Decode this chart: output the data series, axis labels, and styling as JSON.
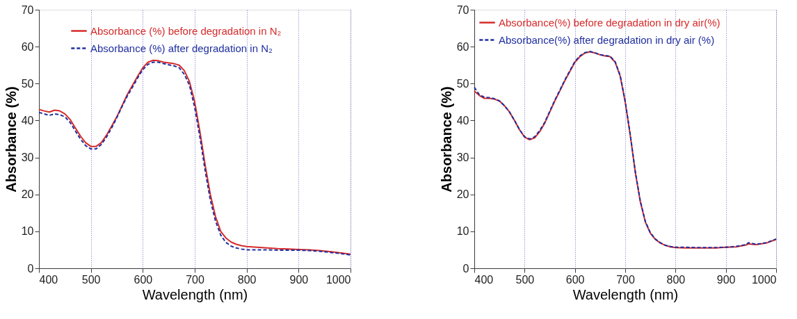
{
  "chart_data": [
    {
      "type": "line",
      "xlabel": "Wavelength (nm)",
      "ylabel": "Absorbance (%)",
      "xlim": [
        400,
        1000
      ],
      "xticks": [
        400,
        500,
        600,
        700,
        800,
        900,
        1000
      ],
      "ylim": [
        0,
        70
      ],
      "yticks": [
        0,
        10,
        20,
        30,
        40,
        50,
        60,
        70
      ],
      "grid": "x",
      "legend": "top",
      "marker": "none",
      "x": [
        400,
        410,
        420,
        430,
        440,
        450,
        460,
        470,
        480,
        490,
        500,
        510,
        520,
        530,
        540,
        550,
        560,
        570,
        580,
        590,
        600,
        610,
        620,
        630,
        640,
        650,
        660,
        670,
        680,
        690,
        700,
        710,
        720,
        730,
        740,
        750,
        760,
        770,
        780,
        790,
        800,
        820,
        840,
        860,
        880,
        900,
        920,
        940,
        960,
        980,
        1000
      ],
      "series": [
        {
          "name": "Absorbance (%) before degradation in N₂",
          "color": "#d62a2a",
          "line_style": "solid",
          "values": [
            43,
            42.6,
            42.3,
            42.8,
            42.6,
            41.8,
            40.3,
            38,
            35.8,
            34,
            33,
            33,
            34,
            36,
            38.5,
            41,
            44,
            47,
            49.5,
            52,
            54.3,
            55.8,
            56.3,
            56.2,
            55.8,
            55.6,
            55.4,
            55,
            53.5,
            50.5,
            45,
            37,
            28,
            20,
            14,
            10,
            8.2,
            7.1,
            6.5,
            6.1,
            5.9,
            5.7,
            5.5,
            5.3,
            5.2,
            5.1,
            5,
            4.8,
            4.5,
            4.2,
            3.8
          ]
        },
        {
          "name": "Absorbance (%) after degradation in N₂",
          "color": "#1f2ea0",
          "line_style": "dashed",
          "values": [
            42.2,
            41.8,
            41.4,
            41.8,
            41.6,
            41,
            39.5,
            37.2,
            35,
            33.2,
            32.3,
            32.3,
            33.5,
            35.5,
            38,
            40.8,
            43.8,
            46.6,
            49,
            51.5,
            53.8,
            55.2,
            55.8,
            55.8,
            55.4,
            55.1,
            54.8,
            54.3,
            52.5,
            49.5,
            43.5,
            35.5,
            26.5,
            18.5,
            12.8,
            9,
            7,
            6,
            5.5,
            5.2,
            5,
            5,
            5,
            4.9,
            4.9,
            4.9,
            4.8,
            4.6,
            4.3,
            4,
            3.6
          ]
        }
      ]
    },
    {
      "type": "line",
      "xlabel": "Wavelength (nm)",
      "ylabel": "Absorbance (%)",
      "xlim": [
        400,
        1000
      ],
      "xticks": [
        400,
        500,
        600,
        700,
        800,
        900,
        1000
      ],
      "ylim": [
        0,
        70
      ],
      "yticks": [
        0,
        10,
        20,
        30,
        40,
        50,
        60,
        70
      ],
      "grid": "x",
      "legend": "top left",
      "marker": "none",
      "x": [
        400,
        410,
        420,
        430,
        440,
        450,
        460,
        470,
        480,
        490,
        500,
        510,
        520,
        530,
        540,
        550,
        560,
        570,
        580,
        590,
        600,
        610,
        620,
        630,
        640,
        650,
        660,
        670,
        680,
        690,
        700,
        710,
        720,
        730,
        740,
        750,
        760,
        770,
        780,
        790,
        800,
        820,
        840,
        860,
        880,
        900,
        920,
        940,
        945,
        960,
        980,
        1000
      ],
      "series": [
        {
          "name": "Absorbance(%) before degradation in dry air(%)",
          "color": "#d62a2a",
          "line_style": "solid",
          "values": [
            48,
            46.8,
            46,
            46,
            45.8,
            45.3,
            44,
            42.3,
            40,
            37.5,
            35.5,
            34.8,
            35.3,
            37,
            39.3,
            42.3,
            45.3,
            48,
            50.8,
            53.3,
            55.8,
            57.3,
            58.3,
            58.6,
            58.3,
            57.8,
            57.5,
            57.3,
            55.8,
            52,
            45,
            36,
            26,
            18,
            12.5,
            9.5,
            7.8,
            6.8,
            6.2,
            5.8,
            5.6,
            5.5,
            5.5,
            5.5,
            5.5,
            5.7,
            5.8,
            6.3,
            6.6,
            6.4,
            6.8,
            7.8
          ]
        },
        {
          "name": "Absorbance(%) after degradation in dry air (%)",
          "color": "#1f2ea0",
          "line_style": "dashed",
          "values": [
            49,
            47,
            46.3,
            46.2,
            45.9,
            45.3,
            44,
            42.3,
            40,
            37.5,
            35.6,
            35,
            35.6,
            37.3,
            39.5,
            42.5,
            45.5,
            48.2,
            51,
            53.5,
            56,
            57.5,
            58.4,
            58.7,
            58.3,
            57.8,
            57.6,
            57.4,
            55.9,
            52.2,
            45.2,
            36.2,
            26.2,
            18.2,
            12.7,
            9.6,
            7.9,
            6.9,
            6.2,
            5.9,
            5.7,
            5.7,
            5.6,
            5.6,
            5.6,
            5.7,
            5.9,
            6.4,
            6.9,
            6.5,
            6.9,
            7.9
          ]
        }
      ]
    }
  ]
}
